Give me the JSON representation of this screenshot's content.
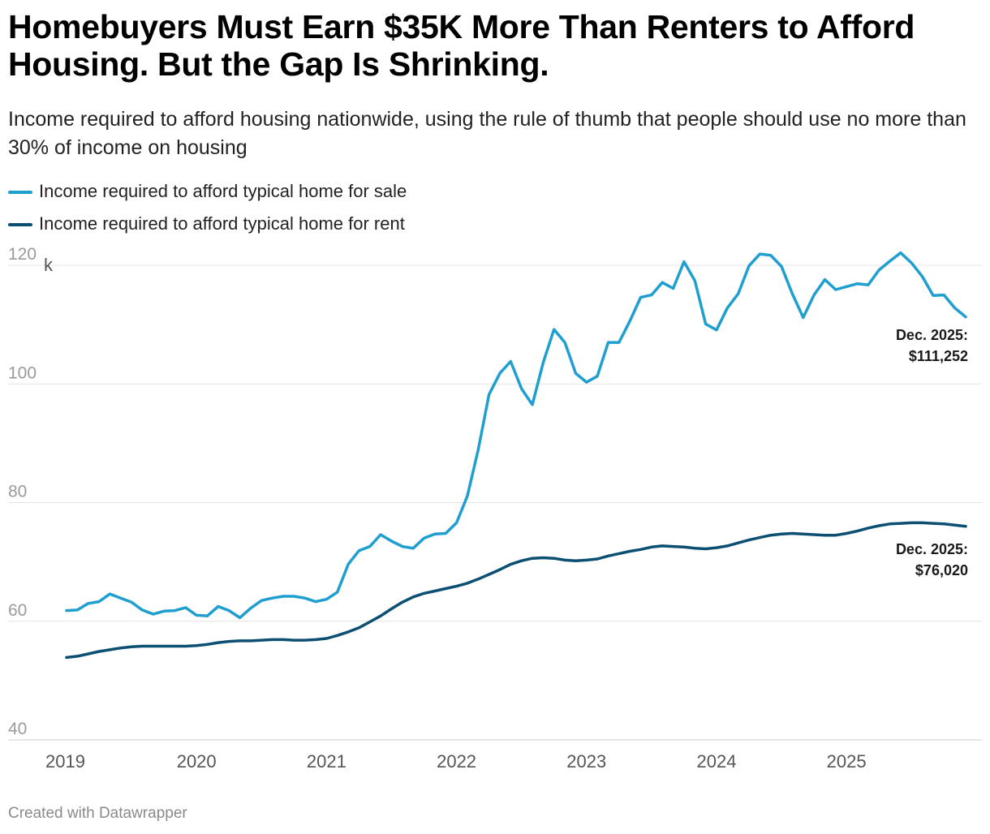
{
  "title": "Homebuyers Must Earn $35K More Than Renters to Afford Housing. But the Gap Is Shrinking.",
  "subtitle": "Income required to afford housing nationwide, using the rule of thumb that people should use no more than 30% of income on housing",
  "footer": "Created with Datawrapper",
  "colors": {
    "sale": "#1f9fd0",
    "rent": "#0b4f73",
    "grid": "#e4e4e4"
  },
  "chart_data": {
    "type": "line",
    "title": "Homebuyers Must Earn $35K More Than Renters to Afford Housing. But the Gap Is Shrinking.",
    "xlabel": "",
    "ylabel": "",
    "ylim": [
      40,
      120
    ],
    "yticks": [
      40,
      60,
      80,
      100,
      120
    ],
    "ytick_labels": [
      "40",
      "60",
      "80",
      "100",
      "120"
    ],
    "y_unit_label": "k",
    "xlim": [
      "2019-01",
      "2025-12"
    ],
    "xticks": [
      "2019",
      "2020",
      "2021",
      "2022",
      "2023",
      "2024",
      "2025"
    ],
    "grid": true,
    "legend_position": "top-left",
    "series": [
      {
        "name": "Income required to afford typical home for sale",
        "color": "#1f9fd0",
        "annotation": [
          "Dec. 2025:",
          "$111,252"
        ],
        "x": [
          "2019-01",
          "2019-02",
          "2019-03",
          "2019-04",
          "2019-05",
          "2019-06",
          "2019-07",
          "2019-08",
          "2019-09",
          "2019-10",
          "2019-11",
          "2019-12",
          "2020-01",
          "2020-02",
          "2020-03",
          "2020-04",
          "2020-05",
          "2020-06",
          "2020-07",
          "2020-08",
          "2020-09",
          "2020-10",
          "2020-11",
          "2020-12",
          "2021-01",
          "2021-02",
          "2021-03",
          "2021-04",
          "2021-05",
          "2021-06",
          "2021-07",
          "2021-08",
          "2021-09",
          "2021-10",
          "2021-11",
          "2021-12",
          "2022-01",
          "2022-02",
          "2022-03",
          "2022-04",
          "2022-05",
          "2022-06",
          "2022-07",
          "2022-08",
          "2022-09",
          "2022-10",
          "2022-11",
          "2022-12",
          "2023-01",
          "2023-02",
          "2023-03",
          "2023-04",
          "2023-05",
          "2023-06",
          "2023-07",
          "2023-08",
          "2023-09",
          "2023-10",
          "2023-11",
          "2023-12",
          "2024-01",
          "2024-02",
          "2024-03",
          "2024-04",
          "2024-05",
          "2024-06",
          "2024-07",
          "2024-08",
          "2024-09",
          "2024-10",
          "2024-11",
          "2024-12",
          "2025-01",
          "2025-02",
          "2025-03",
          "2025-04",
          "2025-05",
          "2025-06",
          "2025-07",
          "2025-08",
          "2025-09",
          "2025-10",
          "2025-11",
          "2025-12"
        ],
        "values": [
          61.8,
          61.9,
          63.0,
          63.3,
          64.6,
          63.9,
          63.2,
          61.9,
          61.2,
          61.7,
          61.8,
          62.3,
          61.0,
          60.9,
          62.5,
          61.8,
          60.6,
          62.2,
          63.5,
          63.9,
          64.2,
          64.2,
          63.9,
          63.3,
          63.7,
          64.9,
          69.6,
          71.9,
          72.6,
          74.6,
          73.5,
          72.6,
          72.3,
          74.0,
          74.7,
          74.8,
          76.6,
          81.1,
          88.9,
          98.2,
          101.8,
          103.8,
          99.2,
          96.5,
          103.6,
          109.2,
          107.0,
          101.8,
          100.3,
          101.3,
          107.0,
          107.0,
          110.6,
          114.6,
          115.0,
          117.1,
          116.1,
          120.6,
          117.4,
          110.1,
          109.1,
          112.8,
          115.2,
          119.9,
          121.9,
          121.7,
          119.8,
          115.2,
          111.2,
          115.0,
          117.6,
          115.9,
          116.4,
          116.9,
          116.7,
          119.2,
          120.7,
          122.1,
          120.4,
          118.1,
          114.9,
          115.0,
          112.8,
          111.3
        ]
      },
      {
        "name": "Income required to afford typical home for rent",
        "color": "#0b4f73",
        "annotation": [
          "Dec. 2025:",
          "$76,020"
        ],
        "x": [
          "2019-01",
          "2019-02",
          "2019-03",
          "2019-04",
          "2019-05",
          "2019-06",
          "2019-07",
          "2019-08",
          "2019-09",
          "2019-10",
          "2019-11",
          "2019-12",
          "2020-01",
          "2020-02",
          "2020-03",
          "2020-04",
          "2020-05",
          "2020-06",
          "2020-07",
          "2020-08",
          "2020-09",
          "2020-10",
          "2020-11",
          "2020-12",
          "2021-01",
          "2021-02",
          "2021-03",
          "2021-04",
          "2021-05",
          "2021-06",
          "2021-07",
          "2021-08",
          "2021-09",
          "2021-10",
          "2021-11",
          "2021-12",
          "2022-01",
          "2022-02",
          "2022-03",
          "2022-04",
          "2022-05",
          "2022-06",
          "2022-07",
          "2022-08",
          "2022-09",
          "2022-10",
          "2022-11",
          "2022-12",
          "2023-01",
          "2023-02",
          "2023-03",
          "2023-04",
          "2023-05",
          "2023-06",
          "2023-07",
          "2023-08",
          "2023-09",
          "2023-10",
          "2023-11",
          "2023-12",
          "2024-01",
          "2024-02",
          "2024-03",
          "2024-04",
          "2024-05",
          "2024-06",
          "2024-07",
          "2024-08",
          "2024-09",
          "2024-10",
          "2024-11",
          "2024-12",
          "2025-01",
          "2025-02",
          "2025-03",
          "2025-04",
          "2025-05",
          "2025-06",
          "2025-07",
          "2025-08",
          "2025-09",
          "2025-10",
          "2025-11",
          "2025-12"
        ],
        "values": [
          53.9,
          54.1,
          54.5,
          54.9,
          55.2,
          55.5,
          55.7,
          55.8,
          55.8,
          55.8,
          55.8,
          55.8,
          55.9,
          56.1,
          56.4,
          56.6,
          56.7,
          56.7,
          56.8,
          56.9,
          56.9,
          56.8,
          56.8,
          56.9,
          57.1,
          57.6,
          58.2,
          58.9,
          59.9,
          60.9,
          62.1,
          63.2,
          64.1,
          64.7,
          65.1,
          65.5,
          65.9,
          66.4,
          67.1,
          67.9,
          68.7,
          69.6,
          70.2,
          70.6,
          70.7,
          70.6,
          70.3,
          70.2,
          70.3,
          70.5,
          71.0,
          71.4,
          71.8,
          72.1,
          72.5,
          72.7,
          72.6,
          72.5,
          72.3,
          72.2,
          72.4,
          72.7,
          73.2,
          73.7,
          74.1,
          74.5,
          74.7,
          74.8,
          74.7,
          74.6,
          74.5,
          74.5,
          74.8,
          75.2,
          75.7,
          76.1,
          76.4,
          76.5,
          76.6,
          76.6,
          76.5,
          76.4,
          76.2,
          76.0
        ]
      }
    ]
  }
}
